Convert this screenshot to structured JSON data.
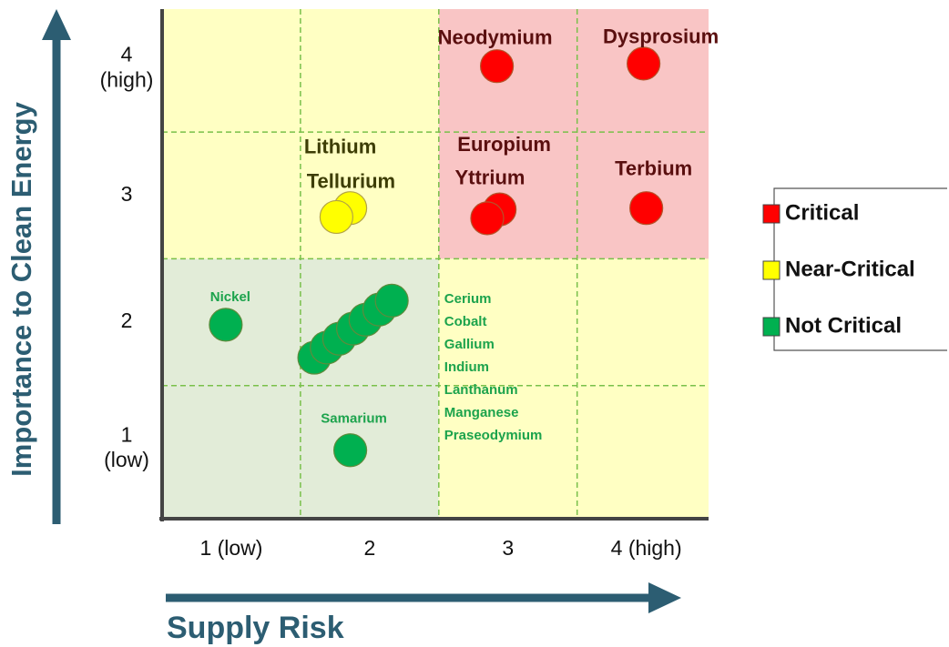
{
  "chart_data": {
    "type": "scatter",
    "x_label": "Supply Risk",
    "y_label": "Importance to Clean Energy",
    "xlim": [
      0.5,
      4.45
    ],
    "ylim": [
      0.45,
      4.47
    ],
    "xticks": [
      {
        "value": 1,
        "label": "1 (low)"
      },
      2,
      3,
      {
        "value": 4,
        "label": "4 (high)"
      }
    ],
    "yticks": [
      {
        "value": 1,
        "label": "1\n(low)"
      },
      2,
      3,
      {
        "value": 4,
        "label": "4\n(high)"
      }
    ],
    "grid": true,
    "legend": "right",
    "series": [
      {
        "name": "Critical",
        "color": "#ff0000",
        "labels": [
          "Neodymium",
          "Dysprosium",
          "Europium",
          "Yttrium",
          "Terbium"
        ],
        "x": [
          2.92,
          3.98,
          2.94,
          2.85,
          4.0
        ],
        "values": [
          4.02,
          4.04,
          2.89,
          2.82,
          2.9
        ]
      },
      {
        "name": "Near-Critical",
        "color": "#ffff00",
        "labels": [
          "Lithium",
          "Tellurium"
        ],
        "x": [
          1.86,
          1.76
        ],
        "values": [
          2.9,
          2.83
        ]
      },
      {
        "name": "Not Critical",
        "color": "#00b050",
        "labels": [
          "Nickel",
          "Samarium",
          "Cerium",
          "Cobalt",
          "Gallium",
          "Indium",
          "Lanthanum",
          "Manganese",
          "Praseodymium"
        ],
        "x": [
          0.96,
          1.86,
          1.6,
          1.69,
          1.78,
          1.88,
          1.97,
          2.07,
          2.16
        ],
        "values": [
          1.98,
          0.99,
          1.72,
          1.8,
          1.87,
          1.95,
          2.02,
          2.1,
          2.17
        ]
      }
    ]
  }
}
